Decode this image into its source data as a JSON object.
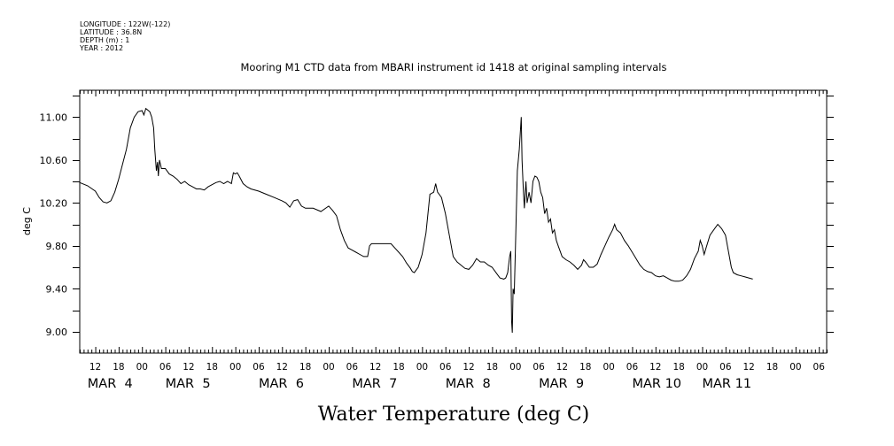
{
  "header": {
    "meta_lines": [
      "LONGITUDE : 122W(-122)",
      "LATITUDE : 36.8N",
      "DEPTH (m) : 1",
      "YEAR : 2012"
    ],
    "title": "Mooring M1 CTD data from MBARI instrument id 1418 at original sampling intervals"
  },
  "chart_data": {
    "type": "line",
    "title": "Mooring M1 CTD data from MBARI instrument id 1418 at original sampling intervals",
    "xlabel": "Water Temperature (deg C)",
    "ylabel": "deg C",
    "x_unit": "hours since 2012-03-04 00:00",
    "xlim": [
      -16,
      176
    ],
    "ylim": [
      8.8,
      11.25
    ],
    "y_ticks": [
      "9.00",
      "9.40",
      "9.80",
      "10.20",
      "10.60",
      "11.00"
    ],
    "y_tick_values": [
      9.0,
      9.4,
      9.8,
      10.2,
      10.6,
      11.0
    ],
    "x_hour_ticks": [
      {
        "t": -12,
        "label": "12"
      },
      {
        "t": -6,
        "label": "18"
      },
      {
        "t": 0,
        "label": "00"
      },
      {
        "t": 6,
        "label": "06"
      },
      {
        "t": 12,
        "label": "12"
      },
      {
        "t": 18,
        "label": "18"
      },
      {
        "t": 24,
        "label": "00"
      },
      {
        "t": 30,
        "label": "06"
      },
      {
        "t": 36,
        "label": "12"
      },
      {
        "t": 42,
        "label": "18"
      },
      {
        "t": 48,
        "label": "00"
      },
      {
        "t": 54,
        "label": "06"
      },
      {
        "t": 60,
        "label": "12"
      },
      {
        "t": 66,
        "label": "18"
      },
      {
        "t": 72,
        "label": "00"
      },
      {
        "t": 78,
        "label": "06"
      },
      {
        "t": 84,
        "label": "12"
      },
      {
        "t": 90,
        "label": "18"
      },
      {
        "t": 96,
        "label": "00"
      },
      {
        "t": 102,
        "label": "06"
      },
      {
        "t": 108,
        "label": "12"
      },
      {
        "t": 114,
        "label": "18"
      },
      {
        "t": 120,
        "label": "00"
      },
      {
        "t": 126,
        "label": "06"
      },
      {
        "t": 132,
        "label": "12"
      },
      {
        "t": 138,
        "label": "18"
      },
      {
        "t": 144,
        "label": "00"
      },
      {
        "t": 150,
        "label": "06"
      },
      {
        "t": 156,
        "label": "12"
      },
      {
        "t": 162,
        "label": "18"
      },
      {
        "t": 168,
        "label": "00"
      },
      {
        "t": 174,
        "label": "06"
      }
    ],
    "x_day_labels": [
      {
        "t": -14,
        "label": "MAR  4"
      },
      {
        "t": 6,
        "label": "MAR  5"
      },
      {
        "t": 30,
        "label": "MAR  6"
      },
      {
        "t": 54,
        "label": "MAR  7"
      },
      {
        "t": 78,
        "label": "MAR  8"
      },
      {
        "t": 102,
        "label": "MAR  9"
      },
      {
        "t": 126,
        "label": "MAR 10"
      },
      {
        "t": 144,
        "label": "MAR 11"
      }
    ],
    "series": [
      {
        "color": "#000000",
        "points": [
          [
            -16,
            10.39
          ],
          [
            -14,
            10.36
          ],
          [
            -12,
            10.31
          ],
          [
            -11,
            10.25
          ],
          [
            -10,
            10.21
          ],
          [
            -9,
            10.2
          ],
          [
            -8,
            10.22
          ],
          [
            -7,
            10.3
          ],
          [
            -6,
            10.42
          ],
          [
            -5,
            10.56
          ],
          [
            -4,
            10.7
          ],
          [
            -3,
            10.9
          ],
          [
            -2,
            11.0
          ],
          [
            -1,
            11.05
          ],
          [
            0,
            11.06
          ],
          [
            0.5,
            11.02
          ],
          [
            1,
            11.08
          ],
          [
            2,
            11.05
          ],
          [
            2.5,
            11.0
          ],
          [
            3,
            10.9
          ],
          [
            3.3,
            10.7
          ],
          [
            3.7,
            10.5
          ],
          [
            4,
            10.58
          ],
          [
            4.2,
            10.45
          ],
          [
            4.5,
            10.6
          ],
          [
            5,
            10.52
          ],
          [
            6,
            10.52
          ],
          [
            7,
            10.47
          ],
          [
            8,
            10.45
          ],
          [
            9,
            10.42
          ],
          [
            10,
            10.38
          ],
          [
            11,
            10.4
          ],
          [
            12,
            10.37
          ],
          [
            13,
            10.35
          ],
          [
            14,
            10.33
          ],
          [
            15,
            10.33
          ],
          [
            16,
            10.32
          ],
          [
            17,
            10.35
          ],
          [
            18,
            10.37
          ],
          [
            19,
            10.39
          ],
          [
            20,
            10.4
          ],
          [
            21,
            10.38
          ],
          [
            22,
            10.4
          ],
          [
            23,
            10.38
          ],
          [
            23.5,
            10.48
          ],
          [
            24,
            10.47
          ],
          [
            24.5,
            10.48
          ],
          [
            25,
            10.45
          ],
          [
            26,
            10.38
          ],
          [
            27,
            10.35
          ],
          [
            28,
            10.33
          ],
          [
            30,
            10.31
          ],
          [
            32,
            10.28
          ],
          [
            34,
            10.25
          ],
          [
            36,
            10.22
          ],
          [
            37,
            10.2
          ],
          [
            38,
            10.16
          ],
          [
            39,
            10.22
          ],
          [
            40,
            10.23
          ],
          [
            41,
            10.17
          ],
          [
            42,
            10.15
          ],
          [
            44,
            10.15
          ],
          [
            46,
            10.12
          ],
          [
            48,
            10.17
          ],
          [
            49,
            10.13
          ],
          [
            50,
            10.08
          ],
          [
            51,
            9.95
          ],
          [
            52,
            9.85
          ],
          [
            53,
            9.78
          ],
          [
            54,
            9.76
          ],
          [
            55,
            9.74
          ],
          [
            56,
            9.72
          ],
          [
            57,
            9.7
          ],
          [
            58,
            9.7
          ],
          [
            58.5,
            9.8
          ],
          [
            59,
            9.82
          ],
          [
            60,
            9.82
          ],
          [
            62,
            9.82
          ],
          [
            64,
            9.82
          ],
          [
            65,
            9.78
          ],
          [
            66,
            9.74
          ],
          [
            67,
            9.7
          ],
          [
            68,
            9.64
          ],
          [
            69,
            9.59
          ],
          [
            69.5,
            9.56
          ],
          [
            70,
            9.55
          ],
          [
            71,
            9.6
          ],
          [
            72,
            9.72
          ],
          [
            73,
            9.92
          ],
          [
            73.5,
            10.1
          ],
          [
            74,
            10.28
          ],
          [
            75,
            10.3
          ],
          [
            75.5,
            10.38
          ],
          [
            76,
            10.3
          ],
          [
            77,
            10.25
          ],
          [
            78,
            10.1
          ],
          [
            79,
            9.9
          ],
          [
            79.5,
            9.8
          ],
          [
            80,
            9.7
          ],
          [
            81,
            9.65
          ],
          [
            82,
            9.62
          ],
          [
            83,
            9.59
          ],
          [
            84,
            9.58
          ],
          [
            85,
            9.62
          ],
          [
            86,
            9.68
          ],
          [
            87,
            9.65
          ],
          [
            88,
            9.65
          ],
          [
            89,
            9.62
          ],
          [
            90,
            9.6
          ],
          [
            91,
            9.55
          ],
          [
            92,
            9.5
          ],
          [
            93,
            9.49
          ],
          [
            93.5,
            9.5
          ],
          [
            94,
            9.55
          ],
          [
            94.5,
            9.7
          ],
          [
            94.8,
            9.75
          ],
          [
            95,
            9.1
          ],
          [
            95.2,
            8.99
          ],
          [
            95.4,
            9.4
          ],
          [
            95.7,
            9.35
          ],
          [
            96,
            9.8
          ],
          [
            96.5,
            10.5
          ],
          [
            97,
            10.7
          ],
          [
            97.5,
            11.0
          ],
          [
            97.7,
            10.6
          ],
          [
            98,
            10.35
          ],
          [
            98.3,
            10.15
          ],
          [
            98.7,
            10.4
          ],
          [
            99,
            10.2
          ],
          [
            99.5,
            10.3
          ],
          [
            100,
            10.2
          ],
          [
            100.5,
            10.4
          ],
          [
            101,
            10.45
          ],
          [
            101.5,
            10.44
          ],
          [
            102,
            10.4
          ],
          [
            102.5,
            10.3
          ],
          [
            103,
            10.25
          ],
          [
            103.5,
            10.1
          ],
          [
            104,
            10.15
          ],
          [
            104.5,
            10.02
          ],
          [
            105,
            10.05
          ],
          [
            105.5,
            9.92
          ],
          [
            106,
            9.95
          ],
          [
            106.5,
            9.85
          ],
          [
            107,
            9.8
          ],
          [
            107.5,
            9.75
          ],
          [
            108,
            9.7
          ],
          [
            109,
            9.67
          ],
          [
            110,
            9.65
          ],
          [
            111,
            9.62
          ],
          [
            112,
            9.58
          ],
          [
            113,
            9.62
          ],
          [
            113.5,
            9.67
          ],
          [
            114,
            9.65
          ],
          [
            115,
            9.6
          ],
          [
            116,
            9.6
          ],
          [
            117,
            9.63
          ],
          [
            118,
            9.72
          ],
          [
            119,
            9.8
          ],
          [
            120,
            9.88
          ],
          [
            121,
            9.95
          ],
          [
            121.5,
            10.0
          ],
          [
            122,
            9.95
          ],
          [
            123,
            9.92
          ],
          [
            124,
            9.85
          ],
          [
            125,
            9.8
          ],
          [
            126,
            9.74
          ],
          [
            127,
            9.68
          ],
          [
            128,
            9.62
          ],
          [
            129,
            9.58
          ],
          [
            130,
            9.56
          ],
          [
            131,
            9.55
          ],
          [
            132,
            9.52
          ],
          [
            133,
            9.51
          ],
          [
            134,
            9.52
          ],
          [
            135,
            9.5
          ],
          [
            136,
            9.48
          ],
          [
            137,
            9.47
          ],
          [
            138,
            9.47
          ],
          [
            139,
            9.48
          ],
          [
            140,
            9.52
          ],
          [
            141,
            9.58
          ],
          [
            142,
            9.68
          ],
          [
            143,
            9.75
          ],
          [
            143.5,
            9.85
          ],
          [
            144,
            9.8
          ],
          [
            144.5,
            9.72
          ],
          [
            145,
            9.78
          ],
          [
            146,
            9.9
          ],
          [
            147,
            9.95
          ],
          [
            148,
            10.0
          ],
          [
            149,
            9.96
          ],
          [
            150,
            9.9
          ],
          [
            150.5,
            9.8
          ],
          [
            151,
            9.7
          ],
          [
            151.5,
            9.6
          ],
          [
            152,
            9.55
          ],
          [
            153,
            9.53
          ],
          [
            154,
            9.52
          ],
          [
            155,
            9.51
          ],
          [
            156,
            9.5
          ],
          [
            157,
            9.49
          ]
        ]
      }
    ]
  }
}
